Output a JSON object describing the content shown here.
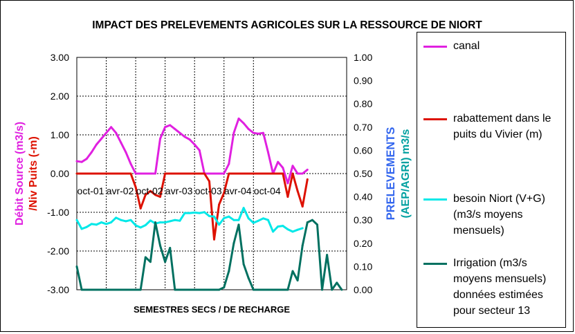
{
  "chart_data": {
    "type": "line",
    "title": "IMPACT DES PRELEVEMENTS AGRICOLES SUR LA RESSOURCE DE NIORT",
    "xlabel": "SEMESTRES SECS / DE RECHARGE",
    "ylabel_left_line1": "Débit Source (m3/s)",
    "ylabel_left_line2": "/Niv Puits (-m)",
    "ylabel_right_line1": "PRELEVEMENTS",
    "ylabel_right_line2": "(AEP/AGRI) m3/s",
    "ylim_left": [
      -3,
      3
    ],
    "ylim_right": [
      0,
      1
    ],
    "yticks_left": [
      "3.00",
      "2.00",
      "1.00",
      "0.00",
      "-1.00",
      "-2.00",
      "-3.00"
    ],
    "yticks_right": [
      "1.00",
      "0.90",
      "0.80",
      "0.70",
      "0.60",
      "0.50",
      "0.40",
      "0.30",
      "0.20",
      "0.10",
      "0.00"
    ],
    "x_tick_labels": [
      "oct-01",
      "avr-02",
      "oct-02",
      "avr-03",
      "oct-03",
      "avr-04",
      "oct-04"
    ],
    "x_tick_month_index": [
      0,
      6,
      12,
      18,
      24,
      30,
      36
    ],
    "grid": true,
    "legend_position": "right",
    "series": [
      {
        "name": "canal",
        "axis": "left",
        "color": "#E020E0",
        "values": [
          0.32,
          0.3,
          0.38,
          0.55,
          0.75,
          0.9,
          1.05,
          1.2,
          1.05,
          0.8,
          0.55,
          0.25,
          0.0,
          0.0,
          0.0,
          0.0,
          0.0,
          0.9,
          1.2,
          1.25,
          1.15,
          1.05,
          0.95,
          0.88,
          0.75,
          0.6,
          0.0,
          0.0,
          0.0,
          0.0,
          0.0,
          0.25,
          1.05,
          1.42,
          1.3,
          1.15,
          1.05,
          1.03,
          1.05,
          0.55,
          0.0,
          0.3,
          0.15,
          -0.25,
          0.2,
          0.0,
          0.0,
          0.1
        ]
      },
      {
        "name": "rabattement dans le puits du Vivier (m)",
        "axis": "left",
        "color": "#DD1100",
        "values": [
          0,
          0,
          0,
          0,
          0,
          0,
          0,
          0,
          0,
          0,
          0,
          0,
          -0.35,
          -0.9,
          -0.55,
          -0.45,
          -0.55,
          -0.6,
          0,
          0,
          0,
          0,
          0,
          0,
          0,
          0,
          0,
          -0.2,
          -1.7,
          -0.8,
          -0.5,
          0,
          0,
          0,
          0,
          0,
          0,
          0,
          0,
          0,
          0,
          0,
          0,
          -0.6,
          0,
          -0.45,
          -0.85,
          -0.15
        ]
      },
      {
        "name": "besoin Niort (V+G) (m3/s moyens mensuels)",
        "axis": "right",
        "color": "#00E8E8",
        "values": [
          0.3,
          0.262,
          0.27,
          0.283,
          0.28,
          0.29,
          0.283,
          0.29,
          0.31,
          0.3,
          0.295,
          0.3,
          0.277,
          0.268,
          0.278,
          0.298,
          0.285,
          0.29,
          0.29,
          0.295,
          0.3,
          0.297,
          0.33,
          0.33,
          0.332,
          0.33,
          0.334,
          0.317,
          0.315,
          0.28,
          0.308,
          0.315,
          0.3,
          0.3,
          0.352,
          0.307,
          0.288,
          0.297,
          0.307,
          0.3,
          0.25,
          0.272,
          0.275,
          0.26,
          0.25,
          0.258,
          0.265
        ]
      },
      {
        "name": "Irrigation (m3/s moyens mensuels) données estimées pour secteur 13",
        "axis": "right",
        "color": "#007060",
        "values": [
          0.1,
          0.0,
          0.0,
          0.0,
          0.0,
          0.0,
          0.0,
          0.0,
          0.0,
          0.0,
          0.0,
          0.0,
          0.0,
          0.0,
          0.14,
          0.12,
          0.29,
          0.19,
          0.12,
          0.18,
          0.0,
          0.0,
          0.0,
          0.0,
          0.0,
          0.0,
          0.0,
          0.0,
          0.0,
          0.0,
          0.01,
          0.08,
          0.2,
          0.28,
          0.11,
          0.05,
          0.0,
          0.0,
          0.0,
          0.0,
          0.0,
          0.0,
          0.0,
          0.0,
          0.08,
          0.04,
          0.19,
          0.29,
          0.3,
          0.28,
          0.0,
          0.15,
          0.0,
          0.03,
          0.0
        ]
      }
    ]
  },
  "legend_lines": [
    [
      "canal"
    ],
    [
      "rabattement dans le",
      "puits du Vivier (m)"
    ],
    [
      "besoin Niort (V+G)",
      "(m3/s moyens",
      "mensuels)"
    ],
    [
      "Irrigation (m3/s",
      "moyens mensuels)",
      "données estimées",
      "pour secteur 13"
    ]
  ]
}
